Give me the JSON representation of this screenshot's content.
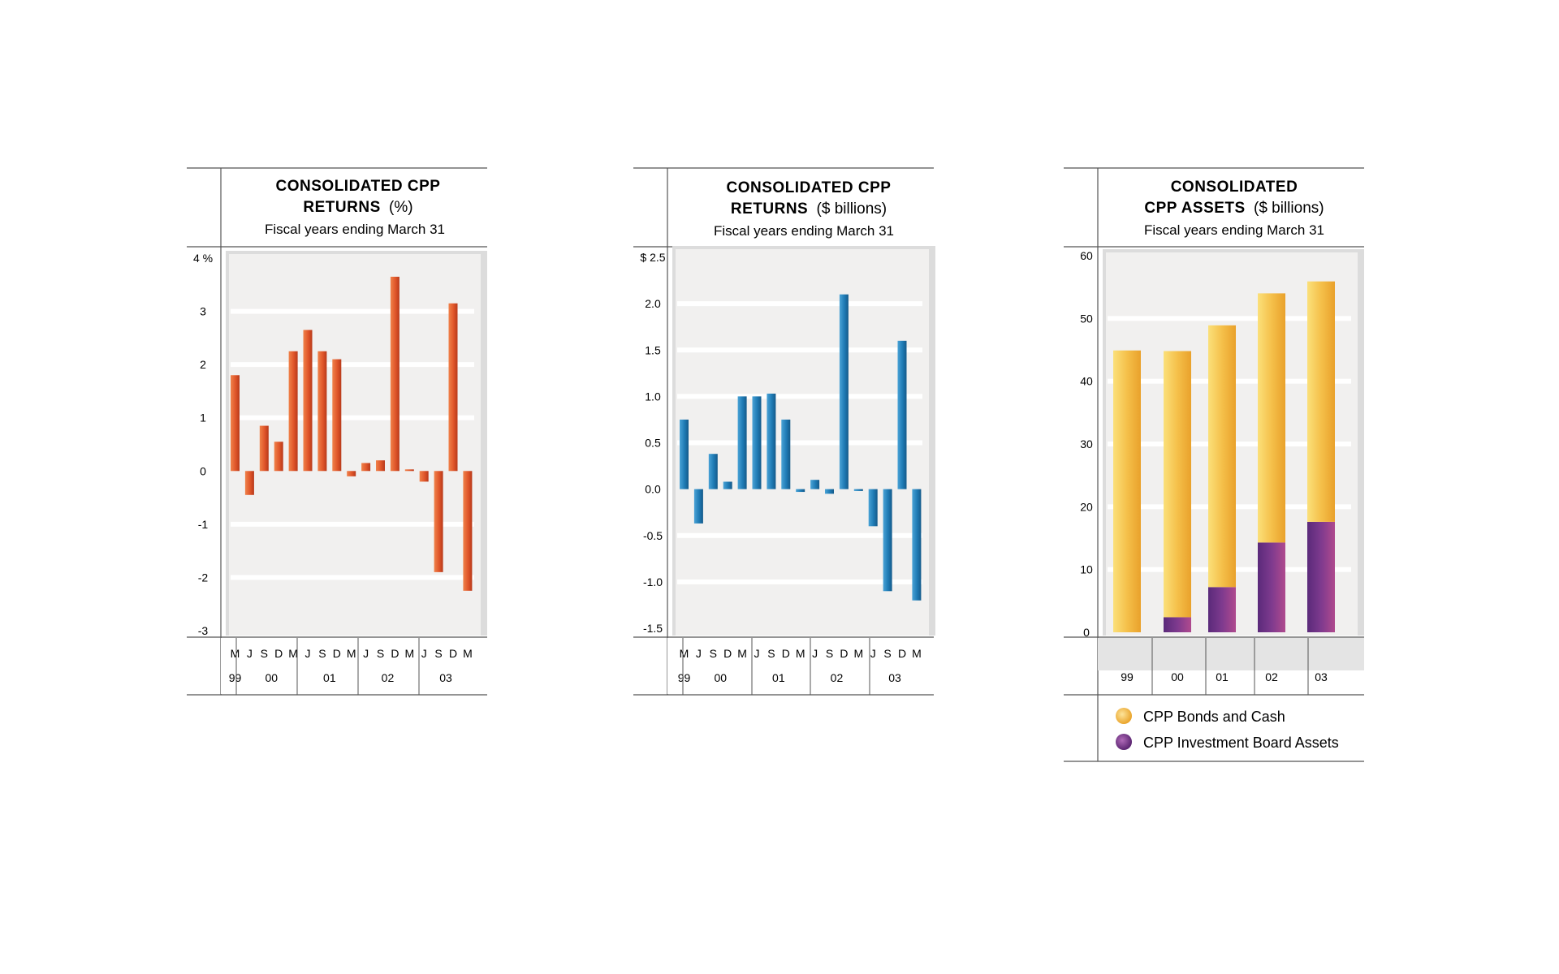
{
  "colors": {
    "returns_pct_bar": "#e0562a",
    "returns_dollar_bar": "#1f7bb5",
    "bonds_cash": "#f2b635",
    "investment_board": "#7e3a8e",
    "plot_bg": "#f1f0ef",
    "gridline": "#ffffff",
    "rule": "#555555"
  },
  "chart_data": [
    {
      "type": "bar",
      "title_line1": "CONSOLIDATED CPP",
      "title_line2_bold": "RETURNS",
      "title_line2_unit": "(%)",
      "subtitle": "Fiscal years ending March 31",
      "ylim": [
        -3,
        4
      ],
      "y_ticks": [
        4,
        3,
        2,
        1,
        0,
        -1,
        -2,
        -3
      ],
      "y_tick_labels": [
        "4 %",
        "3",
        "2",
        "1",
        "0",
        "-1",
        "-2",
        "-3"
      ],
      "quarter_labels": [
        "M",
        "J",
        "S",
        "D",
        "M",
        "J",
        "S",
        "D",
        "M",
        "J",
        "S",
        "D",
        "M",
        "J",
        "S",
        "D",
        "M"
      ],
      "year_groups": [
        {
          "label": "99",
          "span": 1
        },
        {
          "label": "00",
          "span": 4
        },
        {
          "label": "01",
          "span": 4
        },
        {
          "label": "02",
          "span": 4
        },
        {
          "label": "03",
          "span": 4
        }
      ],
      "values": [
        1.8,
        -0.45,
        0.85,
        0.55,
        2.25,
        2.65,
        2.25,
        2.1,
        -0.1,
        0.15,
        0.2,
        3.65,
        0.03,
        -0.2,
        -1.9,
        3.15,
        -2.25
      ]
    },
    {
      "type": "bar",
      "title_line1": "CONSOLIDATED CPP",
      "title_line2_bold": "RETURNS",
      "title_line2_unit": "($ billions)",
      "subtitle": "Fiscal years ending March 31",
      "ylim": [
        -1.5,
        2.5
      ],
      "y_ticks": [
        2.5,
        2.0,
        1.5,
        1.0,
        0.5,
        0.0,
        -0.5,
        -1.0,
        -1.5
      ],
      "y_tick_labels": [
        "$ 2.5",
        "2.0",
        "1.5",
        "1.0",
        "0.5",
        "0.0",
        "-0.5",
        "-1.0",
        "-1.5"
      ],
      "quarter_labels": [
        "M",
        "J",
        "S",
        "D",
        "M",
        "J",
        "S",
        "D",
        "M",
        "J",
        "S",
        "D",
        "M",
        "J",
        "S",
        "D",
        "M"
      ],
      "year_groups": [
        {
          "label": "99",
          "span": 1
        },
        {
          "label": "00",
          "span": 4
        },
        {
          "label": "01",
          "span": 4
        },
        {
          "label": "02",
          "span": 4
        },
        {
          "label": "03",
          "span": 4
        }
      ],
      "values": [
        0.75,
        -0.37,
        0.38,
        0.08,
        1.0,
        1.0,
        1.03,
        0.75,
        -0.03,
        0.1,
        -0.05,
        2.1,
        -0.02,
        -0.4,
        -1.1,
        1.6,
        -1.2
      ]
    },
    {
      "type": "bar",
      "stacked": true,
      "title_line1": "CONSOLIDATED",
      "title_line2_bold": "CPP ASSETS",
      "title_line2_unit": "($ billions)",
      "subtitle": "Fiscal years ending March 31",
      "ylim": [
        0,
        60
      ],
      "y_ticks": [
        60,
        50,
        40,
        30,
        20,
        10,
        0
      ],
      "y_tick_labels": [
        "60",
        "50",
        "40",
        "30",
        "20",
        "10",
        "0"
      ],
      "categories": [
        "99",
        "00",
        "01",
        "02",
        "03"
      ],
      "series": [
        {
          "name": "CPP Investment Board Assets",
          "values": [
            0,
            2.4,
            7.2,
            14.3,
            17.6
          ]
        },
        {
          "name": "CPP Bonds and Cash",
          "values": [
            44.9,
            42.4,
            41.7,
            39.7,
            38.3
          ]
        }
      ],
      "legend": [
        "CPP Bonds and Cash",
        "CPP Investment Board Assets"
      ]
    }
  ]
}
